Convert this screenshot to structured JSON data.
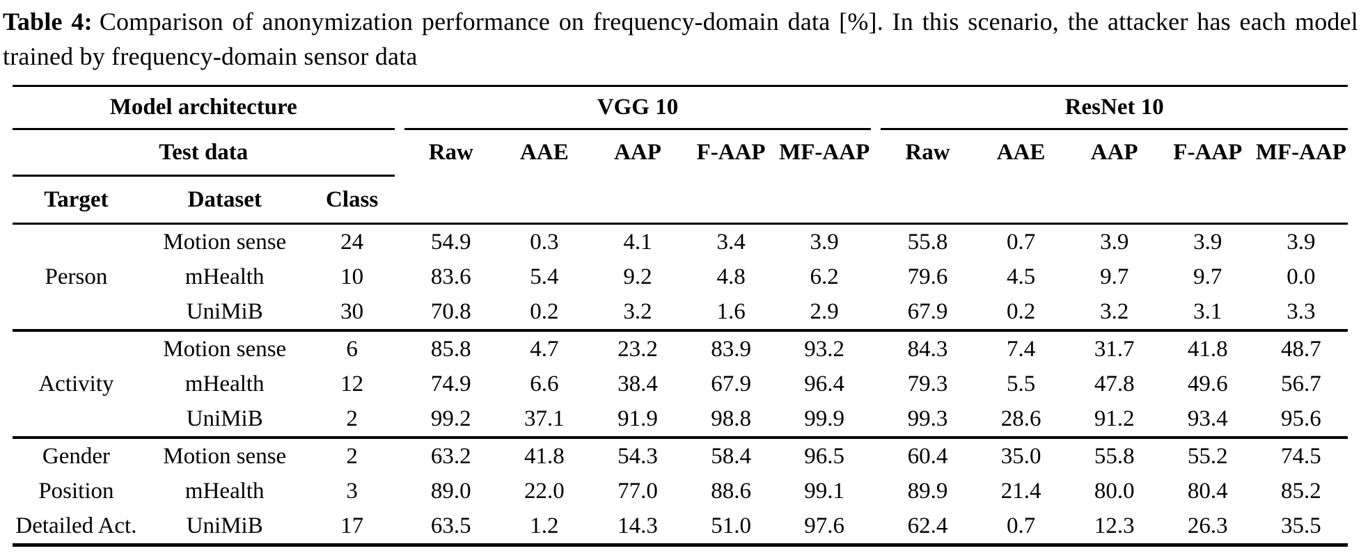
{
  "caption": {
    "label": "Table 4:",
    "text": "Comparison of anonymization performance on frequency-domain data [%]. In this scenario, the attacker has each model trained by frequency-domain sensor data"
  },
  "table": {
    "header": {
      "model_architecture": "Model architecture",
      "vgg": "VGG 10",
      "resnet": "ResNet 10",
      "test_data": "Test data",
      "metrics": [
        "Raw",
        "AAE",
        "AAP",
        "F-AAP",
        "MF-AAP"
      ],
      "target": "Target",
      "dataset": "Dataset",
      "class": "Class"
    },
    "blocks": [
      {
        "rows": [
          {
            "target": "",
            "dataset": "Motion sense",
            "class": "24",
            "vgg": [
              "54.9",
              "0.3",
              "4.1",
              "3.4",
              "3.9"
            ],
            "resnet": [
              "55.8",
              "0.7",
              "3.9",
              "3.9",
              "3.9"
            ]
          },
          {
            "target": "Person",
            "dataset": "mHealth",
            "class": "10",
            "vgg": [
              "83.6",
              "5.4",
              "9.2",
              "4.8",
              "6.2"
            ],
            "resnet": [
              "79.6",
              "4.5",
              "9.7",
              "9.7",
              "0.0"
            ]
          },
          {
            "target": "",
            "dataset": "UniMiB",
            "class": "30",
            "vgg": [
              "70.8",
              "0.2",
              "3.2",
              "1.6",
              "2.9"
            ],
            "resnet": [
              "67.9",
              "0.2",
              "3.2",
              "3.1",
              "3.3"
            ]
          }
        ]
      },
      {
        "rows": [
          {
            "target": "",
            "dataset": "Motion sense",
            "class": "6",
            "vgg": [
              "85.8",
              "4.7",
              "23.2",
              "83.9",
              "93.2"
            ],
            "resnet": [
              "84.3",
              "7.4",
              "31.7",
              "41.8",
              "48.7"
            ]
          },
          {
            "target": "Activity",
            "dataset": "mHealth",
            "class": "12",
            "vgg": [
              "74.9",
              "6.6",
              "38.4",
              "67.9",
              "96.4"
            ],
            "resnet": [
              "79.3",
              "5.5",
              "47.8",
              "49.6",
              "56.7"
            ]
          },
          {
            "target": "",
            "dataset": "UniMiB",
            "class": "2",
            "vgg": [
              "99.2",
              "37.1",
              "91.9",
              "98.8",
              "99.9"
            ],
            "resnet": [
              "99.3",
              "28.6",
              "91.2",
              "93.4",
              "95.6"
            ]
          }
        ]
      },
      {
        "rows": [
          {
            "target": "Gender",
            "dataset": "Motion sense",
            "class": "2",
            "vgg": [
              "63.2",
              "41.8",
              "54.3",
              "58.4",
              "96.5"
            ],
            "resnet": [
              "60.4",
              "35.0",
              "55.8",
              "55.2",
              "74.5"
            ]
          },
          {
            "target": "Position",
            "dataset": "mHealth",
            "class": "3",
            "vgg": [
              "89.0",
              "22.0",
              "77.0",
              "88.6",
              "99.1"
            ],
            "resnet": [
              "89.9",
              "21.4",
              "80.0",
              "80.4",
              "85.2"
            ]
          },
          {
            "target": "Detailed Act.",
            "dataset": "UniMiB",
            "class": "17",
            "vgg": [
              "63.5",
              "1.2",
              "14.3",
              "51.0",
              "97.6"
            ],
            "resnet": [
              "62.4",
              "0.7",
              "12.3",
              "26.3",
              "35.5"
            ]
          }
        ]
      }
    ]
  },
  "colors": {
    "text": "#000000",
    "background": "#ffffff",
    "rule": "#000000"
  }
}
